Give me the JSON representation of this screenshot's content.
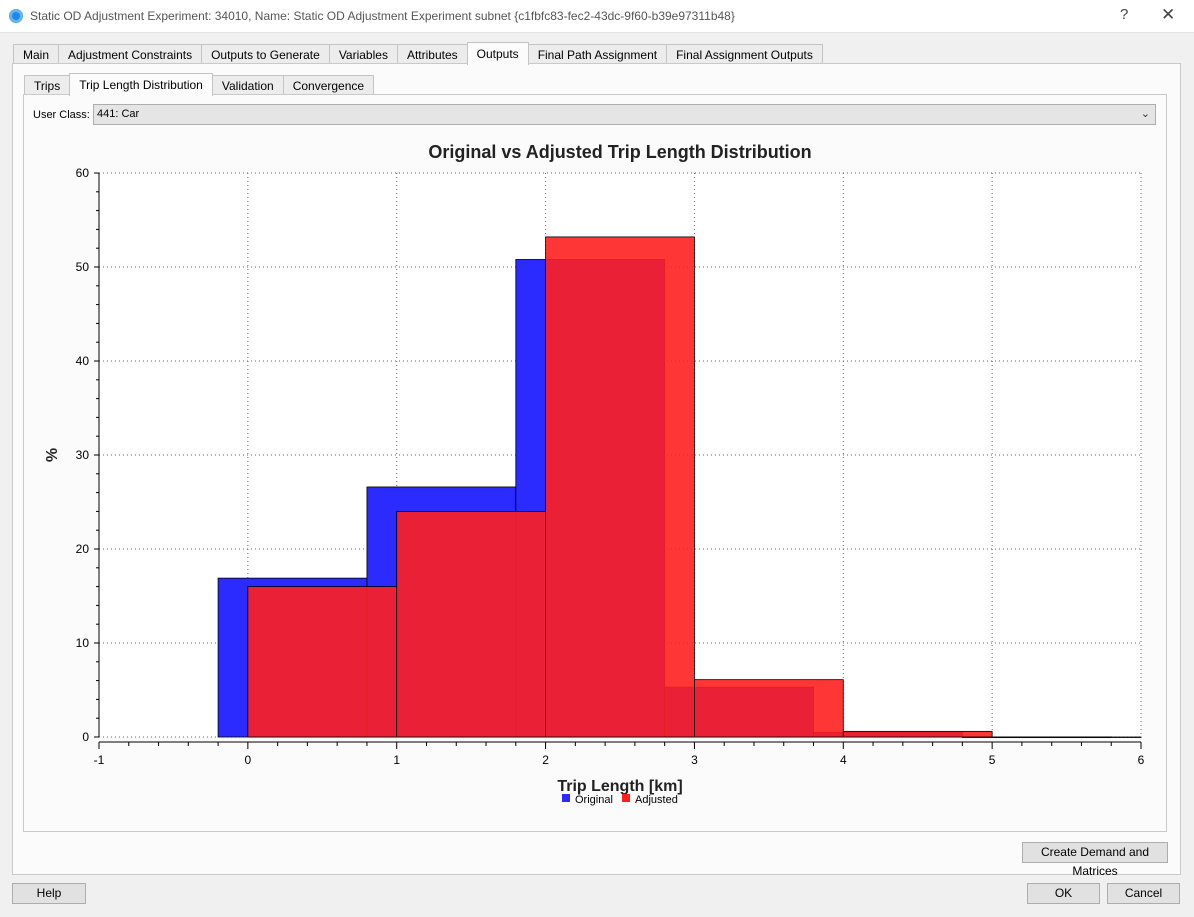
{
  "window": {
    "title": "Static OD Adjustment Experiment: 34010, Name: Static OD Adjustment Experiment subnet  {c1fbfc83-fec2-43dc-9f60-b39e97311b48}",
    "help_glyph": "?",
    "close_glyph": "✕"
  },
  "tabs": [
    {
      "label": "Main",
      "active": false
    },
    {
      "label": "Adjustment Constraints",
      "active": false
    },
    {
      "label": "Outputs to Generate",
      "active": false
    },
    {
      "label": "Variables",
      "active": false
    },
    {
      "label": "Attributes",
      "active": false
    },
    {
      "label": "Outputs",
      "active": true
    },
    {
      "label": "Final Path Assignment",
      "active": false
    },
    {
      "label": "Final Assignment Outputs",
      "active": false
    }
  ],
  "subtabs": [
    {
      "label": "Trips",
      "active": false
    },
    {
      "label": "Trip Length Distribution",
      "active": true
    },
    {
      "label": "Validation",
      "active": false
    },
    {
      "label": "Convergence",
      "active": false
    }
  ],
  "user_class": {
    "label": "User Class:",
    "value": "441: Car"
  },
  "chart_data": {
    "type": "bar",
    "title": "Original vs Adjusted Trip Length Distribution",
    "xlabel": "Trip Length [km]",
    "ylabel": "%",
    "xlim": [
      -1,
      6
    ],
    "ylim": [
      0,
      60
    ],
    "xticks": [
      -1,
      0,
      1,
      2,
      3,
      4,
      5,
      6
    ],
    "yticks": [
      0,
      10,
      20,
      30,
      40,
      50,
      60
    ],
    "grid": true,
    "legend": "bottom-center",
    "series": [
      {
        "name": "Original",
        "color": "#2b2bff",
        "bins": [
          {
            "from": -0.2,
            "to": 0.8,
            "value": 16.9
          },
          {
            "from": 0.8,
            "to": 1.8,
            "value": 26.6
          },
          {
            "from": 1.8,
            "to": 2.8,
            "value": 50.8
          },
          {
            "from": 2.8,
            "to": 3.8,
            "value": 5.3
          },
          {
            "from": 3.8,
            "to": 4.8,
            "value": 0.5
          },
          {
            "from": 4.8,
            "to": 5.8,
            "value": 0.0
          }
        ]
      },
      {
        "name": "Adjusted",
        "color": "#ff2020",
        "bins": [
          {
            "from": 0,
            "to": 1,
            "value": 16.0
          },
          {
            "from": 1,
            "to": 2,
            "value": 24.0
          },
          {
            "from": 2,
            "to": 3,
            "value": 53.2
          },
          {
            "from": 3,
            "to": 4,
            "value": 6.1
          },
          {
            "from": 4,
            "to": 5,
            "value": 0.6
          },
          {
            "from": 5,
            "to": 6,
            "value": 0.0
          }
        ]
      }
    ]
  },
  "buttons": {
    "create": "Create Demand and Matrices",
    "help": "Help",
    "ok": "OK",
    "cancel": "Cancel"
  }
}
